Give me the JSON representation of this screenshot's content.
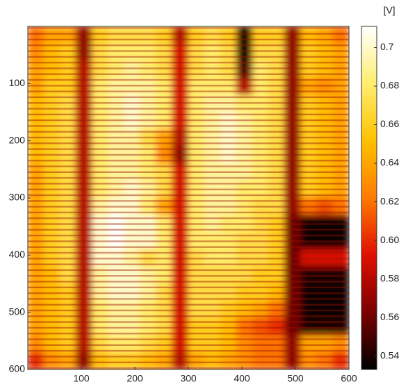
{
  "chart_data": {
    "type": "heatmap",
    "xlim": [
      0,
      600
    ],
    "ylim": [
      0,
      600
    ],
    "y_reversed": true,
    "xticks": [
      100,
      200,
      300,
      400,
      500,
      600
    ],
    "yticks": [
      100,
      200,
      300,
      400,
      500,
      600
    ],
    "colorbar_label": "[V]",
    "clim": [
      0.533,
      0.711
    ],
    "cticks": [
      0.54,
      0.56,
      0.58,
      {
        "value": 0.6,
        "label": "0.60"
      },
      0.62,
      0.64,
      0.66,
      0.68,
      0.7
    ],
    "colormap": [
      "#000000",
      "#7a0000",
      "#e01000",
      "#ff7a00",
      "#ffc000",
      "#ffee70",
      "#ffffff"
    ],
    "z": [
      [
        0.62,
        0.64,
        0.64,
        0.57,
        0.66,
        0.67,
        0.67,
        0.67,
        0.66,
        0.58,
        0.66,
        0.67,
        0.66,
        0.54,
        0.66,
        0.66,
        0.57,
        0.65,
        0.64,
        0.62
      ],
      [
        0.63,
        0.65,
        0.66,
        0.57,
        0.67,
        0.68,
        0.68,
        0.68,
        0.67,
        0.59,
        0.67,
        0.68,
        0.67,
        0.54,
        0.67,
        0.67,
        0.57,
        0.66,
        0.65,
        0.64
      ],
      [
        0.64,
        0.65,
        0.66,
        0.58,
        0.67,
        0.68,
        0.69,
        0.68,
        0.67,
        0.59,
        0.67,
        0.68,
        0.67,
        0.55,
        0.68,
        0.67,
        0.57,
        0.66,
        0.65,
        0.64
      ],
      [
        0.64,
        0.66,
        0.66,
        0.58,
        0.68,
        0.69,
        0.69,
        0.69,
        0.68,
        0.59,
        0.68,
        0.68,
        0.68,
        0.58,
        0.68,
        0.67,
        0.57,
        0.64,
        0.63,
        0.64
      ],
      [
        0.65,
        0.66,
        0.67,
        0.58,
        0.68,
        0.69,
        0.7,
        0.69,
        0.68,
        0.59,
        0.68,
        0.69,
        0.69,
        0.68,
        0.68,
        0.67,
        0.57,
        0.66,
        0.65,
        0.64
      ],
      [
        0.65,
        0.66,
        0.67,
        0.58,
        0.68,
        0.69,
        0.7,
        0.69,
        0.68,
        0.59,
        0.68,
        0.69,
        0.7,
        0.69,
        0.68,
        0.67,
        0.57,
        0.66,
        0.65,
        0.64
      ],
      [
        0.65,
        0.66,
        0.67,
        0.58,
        0.68,
        0.69,
        0.69,
        0.67,
        0.64,
        0.58,
        0.68,
        0.69,
        0.7,
        0.69,
        0.68,
        0.67,
        0.57,
        0.66,
        0.65,
        0.64
      ],
      [
        0.65,
        0.66,
        0.67,
        0.58,
        0.68,
        0.69,
        0.69,
        0.68,
        0.63,
        0.57,
        0.68,
        0.69,
        0.7,
        0.69,
        0.68,
        0.67,
        0.57,
        0.66,
        0.65,
        0.64
      ],
      [
        0.64,
        0.66,
        0.67,
        0.58,
        0.68,
        0.69,
        0.69,
        0.68,
        0.67,
        0.59,
        0.68,
        0.69,
        0.69,
        0.69,
        0.68,
        0.67,
        0.57,
        0.66,
        0.65,
        0.64
      ],
      [
        0.64,
        0.66,
        0.67,
        0.58,
        0.68,
        0.69,
        0.7,
        0.69,
        0.67,
        0.59,
        0.68,
        0.69,
        0.69,
        0.68,
        0.68,
        0.67,
        0.57,
        0.66,
        0.65,
        0.64
      ],
      [
        0.64,
        0.66,
        0.67,
        0.58,
        0.69,
        0.7,
        0.7,
        0.68,
        0.64,
        0.59,
        0.68,
        0.69,
        0.69,
        0.68,
        0.67,
        0.67,
        0.57,
        0.62,
        0.61,
        0.62
      ],
      [
        0.64,
        0.66,
        0.67,
        0.58,
        0.7,
        0.71,
        0.7,
        0.7,
        0.68,
        0.59,
        0.68,
        0.69,
        0.68,
        0.68,
        0.67,
        0.66,
        0.56,
        0.535,
        0.535,
        0.535
      ],
      [
        0.64,
        0.66,
        0.67,
        0.58,
        0.7,
        0.71,
        0.7,
        0.7,
        0.68,
        0.59,
        0.68,
        0.68,
        0.68,
        0.67,
        0.67,
        0.66,
        0.56,
        0.535,
        0.535,
        0.535
      ],
      [
        0.64,
        0.66,
        0.67,
        0.58,
        0.7,
        0.7,
        0.69,
        0.67,
        0.68,
        0.59,
        0.67,
        0.68,
        0.68,
        0.67,
        0.67,
        0.66,
        0.56,
        0.59,
        0.59,
        0.59
      ],
      [
        0.64,
        0.65,
        0.67,
        0.58,
        0.69,
        0.7,
        0.7,
        0.69,
        0.68,
        0.59,
        0.67,
        0.67,
        0.67,
        0.67,
        0.66,
        0.66,
        0.56,
        0.54,
        0.54,
        0.54
      ],
      [
        0.64,
        0.65,
        0.66,
        0.58,
        0.69,
        0.7,
        0.7,
        0.69,
        0.67,
        0.59,
        0.67,
        0.67,
        0.67,
        0.66,
        0.66,
        0.65,
        0.56,
        0.535,
        0.535,
        0.535
      ],
      [
        0.64,
        0.65,
        0.66,
        0.58,
        0.68,
        0.69,
        0.69,
        0.68,
        0.67,
        0.59,
        0.67,
        0.67,
        0.66,
        0.65,
        0.64,
        0.62,
        0.56,
        0.535,
        0.535,
        0.535
      ],
      [
        0.64,
        0.65,
        0.66,
        0.58,
        0.68,
        0.69,
        0.69,
        0.68,
        0.67,
        0.59,
        0.66,
        0.66,
        0.65,
        0.62,
        0.61,
        0.6,
        0.56,
        0.54,
        0.54,
        0.54
      ],
      [
        0.63,
        0.65,
        0.66,
        0.58,
        0.67,
        0.68,
        0.68,
        0.67,
        0.66,
        0.59,
        0.66,
        0.66,
        0.65,
        0.63,
        0.62,
        0.62,
        0.57,
        0.64,
        0.64,
        0.63
      ],
      [
        0.6,
        0.63,
        0.64,
        0.57,
        0.65,
        0.66,
        0.66,
        0.65,
        0.64,
        0.58,
        0.64,
        0.65,
        0.64,
        0.63,
        0.62,
        0.62,
        0.57,
        0.63,
        0.62,
        0.6
      ]
    ]
  }
}
